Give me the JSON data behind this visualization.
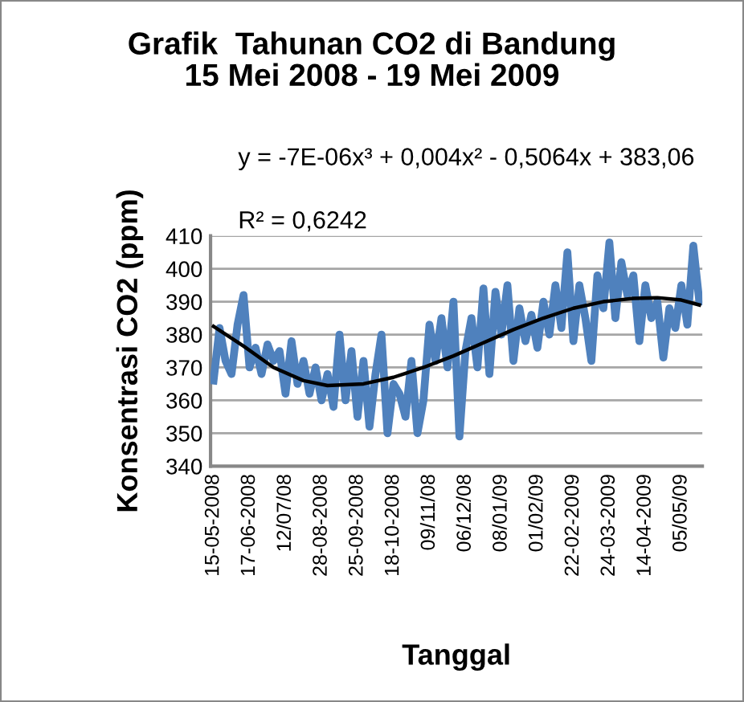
{
  "chart_data": {
    "type": "line",
    "title": "Grafik  Tahunan CO2 di Bandung\n15 Mei 2008 - 19 Mei 2009",
    "xlabel": "Tanggal",
    "ylabel": "Konsentrasi CO2 (ppm)",
    "annotations": [
      "y = -7E-06x³ + 0,004x² - 0,5064x + 383,06",
      "R² = 0,6242"
    ],
    "categories": [
      "15-05-2008",
      null,
      null,
      null,
      null,
      null,
      "17-06-2008",
      null,
      null,
      null,
      null,
      null,
      "12/07/08",
      null,
      null,
      null,
      null,
      null,
      "28-08-2008",
      null,
      null,
      null,
      null,
      null,
      "25-09-2008",
      null,
      null,
      null,
      null,
      null,
      "18-10-2008",
      null,
      null,
      null,
      null,
      null,
      "09/11/08",
      null,
      null,
      null,
      null,
      null,
      "06/12/08",
      null,
      null,
      null,
      null,
      null,
      "08/01/09",
      null,
      null,
      null,
      null,
      null,
      "01/02/09",
      null,
      null,
      null,
      null,
      null,
      "22-02-2009",
      null,
      null,
      null,
      null,
      null,
      "24-03-2009",
      null,
      null,
      null,
      null,
      null,
      "14-04-2009",
      null,
      null,
      null,
      null,
      null,
      "05/05/09",
      null,
      null,
      null
    ],
    "series": [
      {
        "color": "#4f81bd",
        "values": [
          366,
          382,
          372,
          368,
          383,
          392,
          370,
          376,
          368,
          377,
          372,
          375,
          362,
          378,
          365,
          372,
          362,
          370,
          360,
          368,
          358,
          380,
          360,
          375,
          355,
          372,
          352,
          368,
          380,
          350,
          365,
          362,
          355,
          372,
          350,
          360,
          383,
          372,
          385,
          370,
          390,
          349,
          375,
          385,
          370,
          394,
          368,
          393,
          380,
          395,
          372,
          388,
          378,
          386,
          376,
          390,
          380,
          395,
          382,
          405,
          378,
          395,
          385,
          372,
          398,
          388,
          408,
          385,
          402,
          392,
          398,
          378,
          395,
          385,
          390,
          373,
          388,
          382,
          395,
          383,
          407,
          390
        ]
      },
      {
        "type": "line",
        "color": "#000000",
        "values": [
          382.5,
          null,
          null,
          null,
          null,
          376.5,
          null,
          null,
          null,
          null,
          370,
          null,
          null,
          null,
          null,
          366,
          null,
          null,
          null,
          364.5,
          null,
          null,
          null,
          null,
          null,
          365,
          null,
          null,
          null,
          null,
          367,
          null,
          null,
          null,
          null,
          370,
          null,
          null,
          null,
          null,
          373.5,
          null,
          null,
          null,
          null,
          377.5,
          null,
          null,
          null,
          null,
          381.5,
          null,
          null,
          null,
          null,
          385,
          null,
          null,
          null,
          null,
          388,
          null,
          null,
          null,
          null,
          390,
          null,
          null,
          null,
          null,
          391,
          null,
          null,
          null,
          391.2,
          null,
          null,
          null,
          390.5,
          null,
          null,
          389
        ]
      }
    ],
    "ylim": [
      340,
      410
    ],
    "yticks": [
      340,
      350,
      360,
      370,
      380,
      390,
      400,
      410
    ],
    "grid": "y",
    "legend": false,
    "marker": "none",
    "line_style": "solid"
  }
}
